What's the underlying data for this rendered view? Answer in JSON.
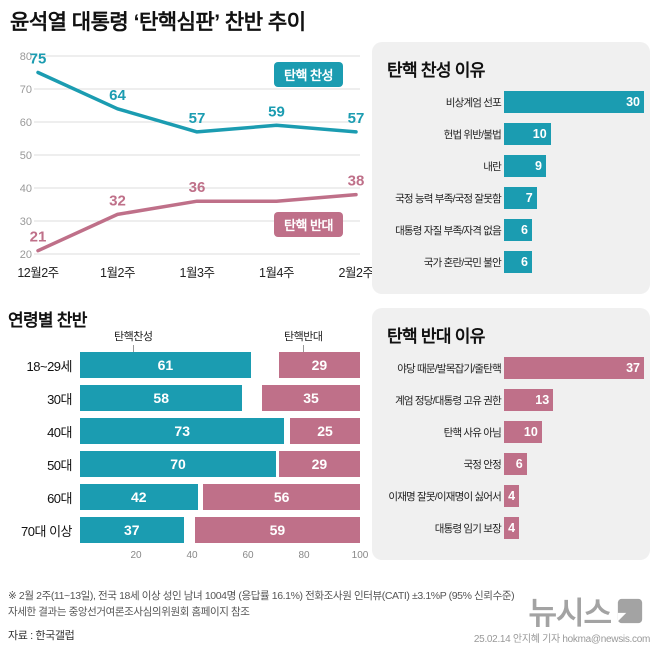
{
  "title": {
    "prefix": "윤석열 대통령",
    "highlight": "‘탄핵심판’",
    "suffix": "찬반 추이"
  },
  "colors": {
    "teal": "#1b9cb1",
    "pink": "#bf7089",
    "panel_bg": "#f0f0f0",
    "grid": "#dddddd",
    "axis_text": "#999999",
    "logo_gray": "#a3a3a3"
  },
  "chart_data": [
    {
      "id": "trend",
      "type": "line",
      "title": "탄핵심판 찬반 추이",
      "categories": [
        "12월2주",
        "1월2주",
        "1월3주",
        "1월4주",
        "2월2주"
      ],
      "ylim": [
        20,
        80
      ],
      "yticks": [
        20,
        30,
        40,
        50,
        60,
        70,
        80
      ],
      "grid": true,
      "series": [
        {
          "name": "탄핵 찬성",
          "color": "#1b9cb1",
          "values": [
            75,
            64,
            57,
            59,
            57
          ],
          "labels": [
            75,
            64,
            57,
            59,
            57
          ]
        },
        {
          "name": "탄핵 반대",
          "color": "#bf7089",
          "values": [
            21,
            32,
            36,
            36,
            38
          ],
          "labels": [
            21,
            32,
            36,
            null,
            38
          ]
        }
      ]
    },
    {
      "id": "approve_reasons",
      "type": "bar",
      "title": "탄핵 찬성 이유",
      "color": "#1b9cb1",
      "categories": [
        "비상계엄 선포",
        "헌법 위반/불법",
        "내란",
        "국정 능력 부족/국정 잘못함",
        "대통령 자질 부족/자격 없음",
        "국가 혼란/국민 불안"
      ],
      "values": [
        30,
        10,
        9,
        7,
        6,
        6
      ]
    },
    {
      "id": "oppose_reasons",
      "type": "bar",
      "title": "탄핵 반대 이유",
      "color": "#bf7089",
      "categories": [
        "야당 때문/발목잡기/줄탄핵",
        "계엄 정당/대통령 고유 권한",
        "탄핵 사유 아님",
        "국정 안정",
        "이재명 잘못/이재명이 싫어서",
        "대통령 임기 보장"
      ],
      "values": [
        37,
        13,
        10,
        6,
        4,
        4
      ]
    },
    {
      "id": "by_age",
      "type": "stacked-bar",
      "title": "연령별 찬반",
      "categories": [
        "18~29세",
        "30대",
        "40대",
        "50대",
        "60대",
        "70대 이상"
      ],
      "series": [
        {
          "name": "탄핵찬성",
          "color": "#1b9cb1",
          "values": [
            61,
            58,
            73,
            70,
            42,
            37
          ]
        },
        {
          "name": "탄핵반대",
          "color": "#bf7089",
          "values": [
            29,
            35,
            25,
            29,
            56,
            59
          ]
        }
      ],
      "xlim": [
        0,
        100
      ],
      "xticks": [
        20,
        40,
        60,
        80,
        100
      ]
    }
  ],
  "footer": {
    "note1": "※ 2월 2주(11~13일), 전국 18세 이상 성인 남녀 1004명 (응답률 16.1%) 전화조사원 인터뷰(CATI) ±3.1%P (95% 신뢰수준)",
    "note2": "자세한 결과는 중앙선거여론조사심의위원회 홈페이지 참조",
    "source": "자료 : 한국갤럽",
    "logo_text": "뉴시스",
    "credit": "25.02.14 안지혜 기자 hokma@newsis.com"
  }
}
